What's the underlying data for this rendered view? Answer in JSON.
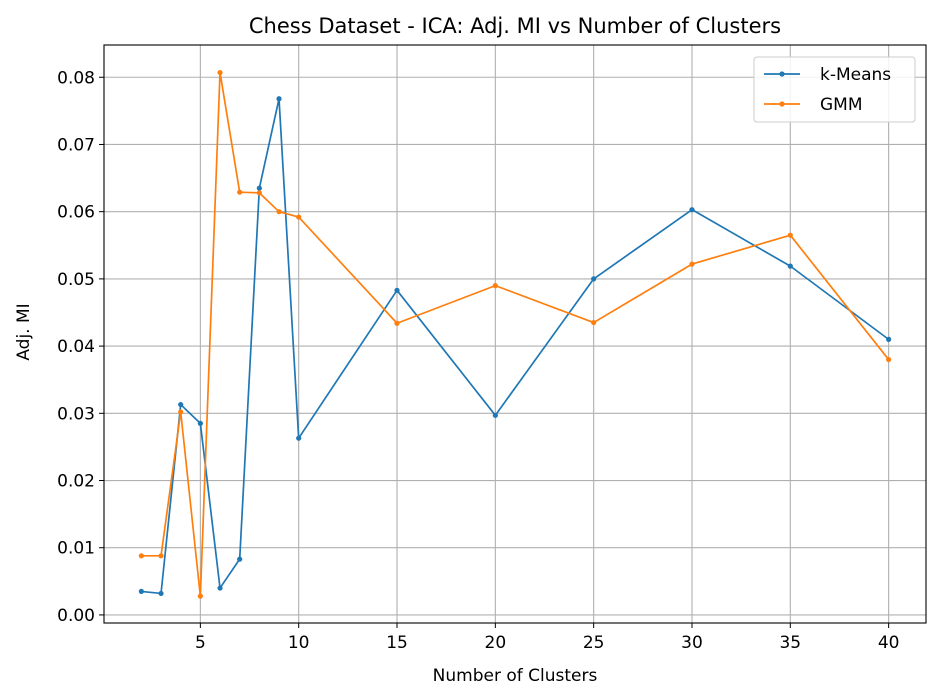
{
  "chart_data": {
    "type": "line",
    "title": "Chess Dataset - ICA: Adj. MI vs Number of Clusters",
    "xlabel": "Number of Clusters",
    "ylabel": "Adj. MI",
    "xlim": [
      0.1,
      41.9
    ],
    "ylim": [
      -0.0012,
      0.0848
    ],
    "xticks": [
      5,
      10,
      15,
      20,
      25,
      30,
      35,
      40
    ],
    "yticks": [
      0.0,
      0.01,
      0.02,
      0.03,
      0.04,
      0.05,
      0.06,
      0.07,
      0.08
    ],
    "ytick_labels": [
      "0.00",
      "0.01",
      "0.02",
      "0.03",
      "0.04",
      "0.05",
      "0.06",
      "0.07",
      "0.08"
    ],
    "grid": true,
    "legend_position": "top-right",
    "x": [
      2,
      3,
      4,
      5,
      6,
      7,
      8,
      9,
      10,
      15,
      20,
      25,
      30,
      35,
      40
    ],
    "series": [
      {
        "name": "k-Means",
        "color": "#1f77b4",
        "values": [
          0.0035,
          0.0032,
          0.0313,
          0.0285,
          0.004,
          0.0083,
          0.0635,
          0.0768,
          0.0263,
          0.0483,
          0.0297,
          0.05,
          0.0603,
          0.0519,
          0.041
        ]
      },
      {
        "name": "GMM",
        "color": "#ff7f0e",
        "values": [
          0.0088,
          0.0088,
          0.0302,
          0.0028,
          0.0807,
          0.0629,
          0.0628,
          0.06,
          0.0592,
          0.0434,
          0.049,
          0.0435,
          0.0522,
          0.0565,
          0.038
        ]
      }
    ]
  }
}
